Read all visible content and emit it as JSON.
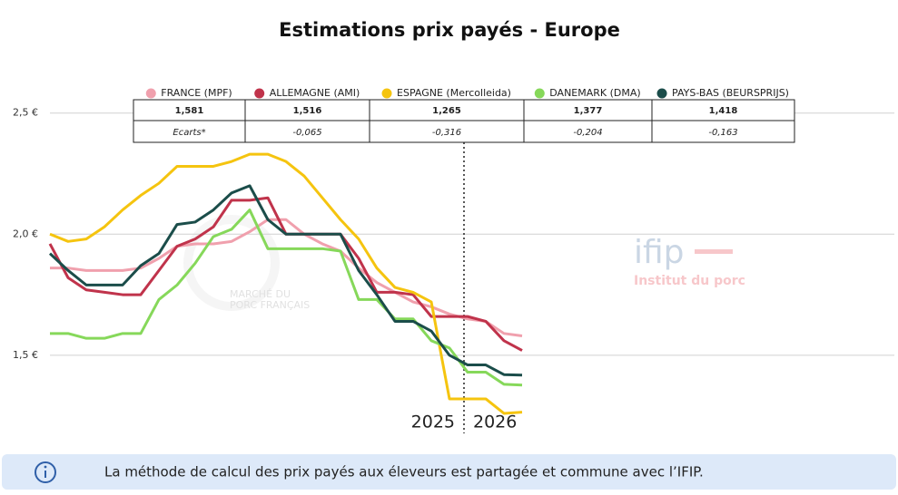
{
  "chart_data": {
    "type": "line",
    "title": "Estimations prix payés - Europe",
    "x": [
      0,
      1,
      2,
      3,
      4,
      5,
      6,
      7,
      8,
      9,
      10,
      11,
      12,
      13,
      14,
      15,
      16,
      17,
      18,
      19,
      20,
      21,
      22,
      23,
      24,
      25,
      26
    ],
    "xlim": [
      0,
      46.5
    ],
    "ylim": [
      1.2,
      2.6
    ],
    "yticks": [
      {
        "value": 1.5,
        "label": "1,5 €"
      },
      {
        "value": 2.0,
        "label": "2,0 €"
      },
      {
        "value": 2.5,
        "label": "2,5 €"
      }
    ],
    "grid": true,
    "year_divider": 22.8,
    "annotations": [
      "2025",
      "2026"
    ],
    "summary_row_label": "Ecarts*",
    "series": [
      {
        "name": "FRANCE (MPF)",
        "color": "#f0a0ad",
        "summary": 1.581,
        "summary_label": "1,581",
        "ecart": null,
        "ecart_label": null,
        "values": [
          1.86,
          1.86,
          1.85,
          1.85,
          1.85,
          1.86,
          1.9,
          1.95,
          1.96,
          1.96,
          1.97,
          2.01,
          2.06,
          2.06,
          2.0,
          1.96,
          1.93,
          1.86,
          1.8,
          1.76,
          1.72,
          1.7,
          1.67,
          1.65,
          1.64,
          1.59,
          1.58
        ]
      },
      {
        "name": "ALLEMAGNE (AMI)",
        "color": "#c0334b",
        "summary": 1.516,
        "summary_label": "1,516",
        "ecart": -0.065,
        "ecart_label": "-0,065",
        "values": [
          1.96,
          1.82,
          1.77,
          1.76,
          1.75,
          1.75,
          1.85,
          1.95,
          1.98,
          2.03,
          2.14,
          2.14,
          2.15,
          2.0,
          2.0,
          2.0,
          2.0,
          1.9,
          1.76,
          1.76,
          1.75,
          1.66,
          1.66,
          1.66,
          1.64,
          1.56,
          1.52
        ]
      },
      {
        "name": "ESPAGNE (Mercolleida)",
        "color": "#f5c40f",
        "summary": 1.265,
        "summary_label": "1,265",
        "ecart": -0.316,
        "ecart_label": "-0,316",
        "values": [
          2.0,
          1.97,
          1.98,
          2.03,
          2.1,
          2.16,
          2.21,
          2.28,
          2.28,
          2.28,
          2.3,
          2.33,
          2.33,
          2.3,
          2.24,
          2.15,
          2.06,
          1.98,
          1.86,
          1.78,
          1.76,
          1.72,
          1.32,
          1.32,
          1.32,
          1.26,
          1.265
        ]
      },
      {
        "name": "DANEMARK (DMA)",
        "color": "#86d85a",
        "summary": 1.377,
        "summary_label": "1,377",
        "ecart": -0.204,
        "ecart_label": "-0,204",
        "values": [
          1.59,
          1.59,
          1.57,
          1.57,
          1.59,
          1.59,
          1.73,
          1.79,
          1.88,
          1.99,
          2.02,
          2.1,
          1.94,
          1.94,
          1.94,
          1.94,
          1.93,
          1.73,
          1.73,
          1.65,
          1.65,
          1.56,
          1.53,
          1.43,
          1.43,
          1.38,
          1.377
        ]
      },
      {
        "name": "PAYS-BAS (BEURSPRIJS)",
        "color": "#1b4d4a",
        "summary": 1.418,
        "summary_label": "1,418",
        "ecart": -0.163,
        "ecart_label": "-0,163",
        "values": [
          1.92,
          1.85,
          1.79,
          1.79,
          1.79,
          1.87,
          1.92,
          2.04,
          2.05,
          2.1,
          2.17,
          2.2,
          2.06,
          2.0,
          2.0,
          2.0,
          2.0,
          1.85,
          1.75,
          1.64,
          1.64,
          1.6,
          1.5,
          1.46,
          1.46,
          1.42,
          1.418
        ]
      }
    ]
  },
  "watermarks": {
    "ifip": "ifip",
    "ifip_sub": "Institut du porc",
    "marche_1": "MARCHÉ DU",
    "marche_2": "PORC FRANÇAIS"
  },
  "info": "La méthode de calcul des prix payés aux éleveurs est partagée et commune avec l’IFIP."
}
